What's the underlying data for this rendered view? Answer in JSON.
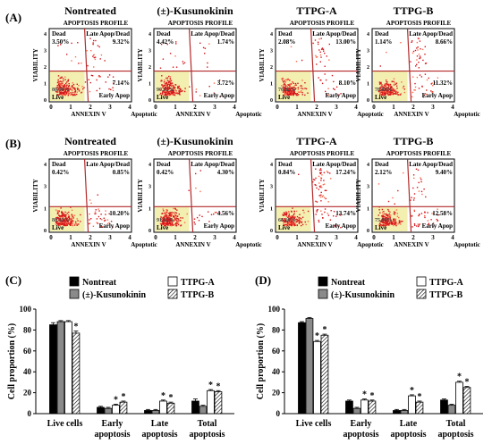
{
  "panel_labels": [
    "(A)",
    "(B)",
    "(C)",
    "(D)"
  ],
  "flow": {
    "conditions": [
      "Nontreated",
      "(±)-Kusunokinin",
      "TTPG-A",
      "TTPG-B"
    ],
    "profile_title": "APOPTOSIS PROFILE",
    "y_axis_label": "VIABILITY",
    "x_axis_label": "ANNEXIN V",
    "x_ticks": [
      "0",
      "1",
      "2",
      "3",
      "4"
    ],
    "y_ticks_A": [
      "4",
      "3",
      "2",
      "1",
      "0"
    ],
    "y_ticks_B": [
      "4",
      "3",
      "1",
      "0"
    ],
    "quadrant_labels": {
      "dead": "Dead",
      "late": "Late Apop/Dead",
      "early": "Early Apop",
      "live": "Live",
      "apoptotic": "Apoptotic"
    },
    "rowA": [
      {
        "dead": "3.50%",
        "late": "9.32%",
        "early": "7.14%",
        "live": "80.04%"
      },
      {
        "dead": "4.42%",
        "late": "1.74%",
        "early": "3.72%",
        "live": "90.12%"
      },
      {
        "dead": "2.08%",
        "late": "13.00%",
        "early": "8.10%",
        "live": "76.82%"
      },
      {
        "dead": "1.14%",
        "late": "8.66%",
        "early": "11.32%",
        "live": "78.88%"
      }
    ],
    "rowB": [
      {
        "dead": "0.42%",
        "late": "0.85%",
        "early": "10.20%",
        "live": "88.53%"
      },
      {
        "dead": "0.42%",
        "late": "4.30%",
        "early": "4.56%",
        "live": "91.12%"
      },
      {
        "dead": "0.84%",
        "late": "17.24%",
        "early": "13.74%",
        "live": "68.18%"
      },
      {
        "dead": "2.12%",
        "late": "9.40%",
        "early": "12.58%",
        "live": "75.90%"
      }
    ]
  },
  "legend": {
    "entries": [
      "Nontreat",
      "(±)-Kusunokinin",
      "TTPG-A",
      "TTPG-B"
    ]
  },
  "chart_data": [
    {
      "panel": "(C)",
      "type": "bar",
      "ylabel": "Cell proportion (%)",
      "ylim": [
        0,
        100
      ],
      "yticks": [
        0,
        20,
        40,
        60,
        80,
        100
      ],
      "categories": [
        "Live cells",
        "Early apoptosis",
        "Late apoptosis",
        "Total apoptosis"
      ],
      "series": [
        {
          "name": "Nontreat",
          "values": [
            85,
            6,
            3,
            12
          ]
        },
        {
          "name": "(±)-Kusunokinin",
          "values": [
            88,
            5,
            3,
            7
          ]
        },
        {
          "name": "TTPG-A",
          "values": [
            88,
            8,
            12,
            22
          ]
        },
        {
          "name": "TTPG-B",
          "values": [
            77,
            11,
            10,
            21
          ]
        }
      ],
      "errors": [
        [
          2,
          1,
          1,
          2
        ],
        [
          1,
          1,
          1,
          1
        ],
        [
          1,
          1,
          1,
          1
        ],
        [
          2,
          1,
          1,
          1
        ]
      ],
      "significant": [
        [
          false,
          false,
          false,
          false
        ],
        [
          false,
          false,
          false,
          false
        ],
        [
          false,
          true,
          true,
          true
        ],
        [
          true,
          true,
          true,
          true
        ]
      ],
      "marker": "*"
    },
    {
      "panel": "(D)",
      "type": "bar",
      "ylabel": "Cell proportion (%)",
      "ylim": [
        0,
        100
      ],
      "yticks": [
        0,
        20,
        40,
        60,
        80,
        100
      ],
      "categories": [
        "Live cells",
        "Early apoptosis",
        "Late apoptosis",
        "Total apoptosis"
      ],
      "series": [
        {
          "name": "Nontreat",
          "values": [
            87,
            12,
            3,
            13
          ]
        },
        {
          "name": "(±)-Kusunokinin",
          "values": [
            91,
            5,
            3,
            8
          ]
        },
        {
          "name": "TTPG-A",
          "values": [
            69,
            13,
            17,
            30
          ]
        },
        {
          "name": "TTPG-B",
          "values": [
            75,
            12,
            11,
            25
          ]
        }
      ],
      "errors": [
        [
          1,
          1,
          1,
          1
        ],
        [
          1,
          1,
          1,
          1
        ],
        [
          1,
          1,
          1,
          1
        ],
        [
          1,
          1,
          1,
          1
        ]
      ],
      "significant": [
        [
          false,
          false,
          false,
          false
        ],
        [
          false,
          false,
          false,
          false
        ],
        [
          true,
          true,
          true,
          true
        ],
        [
          true,
          true,
          true,
          true
        ]
      ],
      "marker": "*"
    }
  ]
}
